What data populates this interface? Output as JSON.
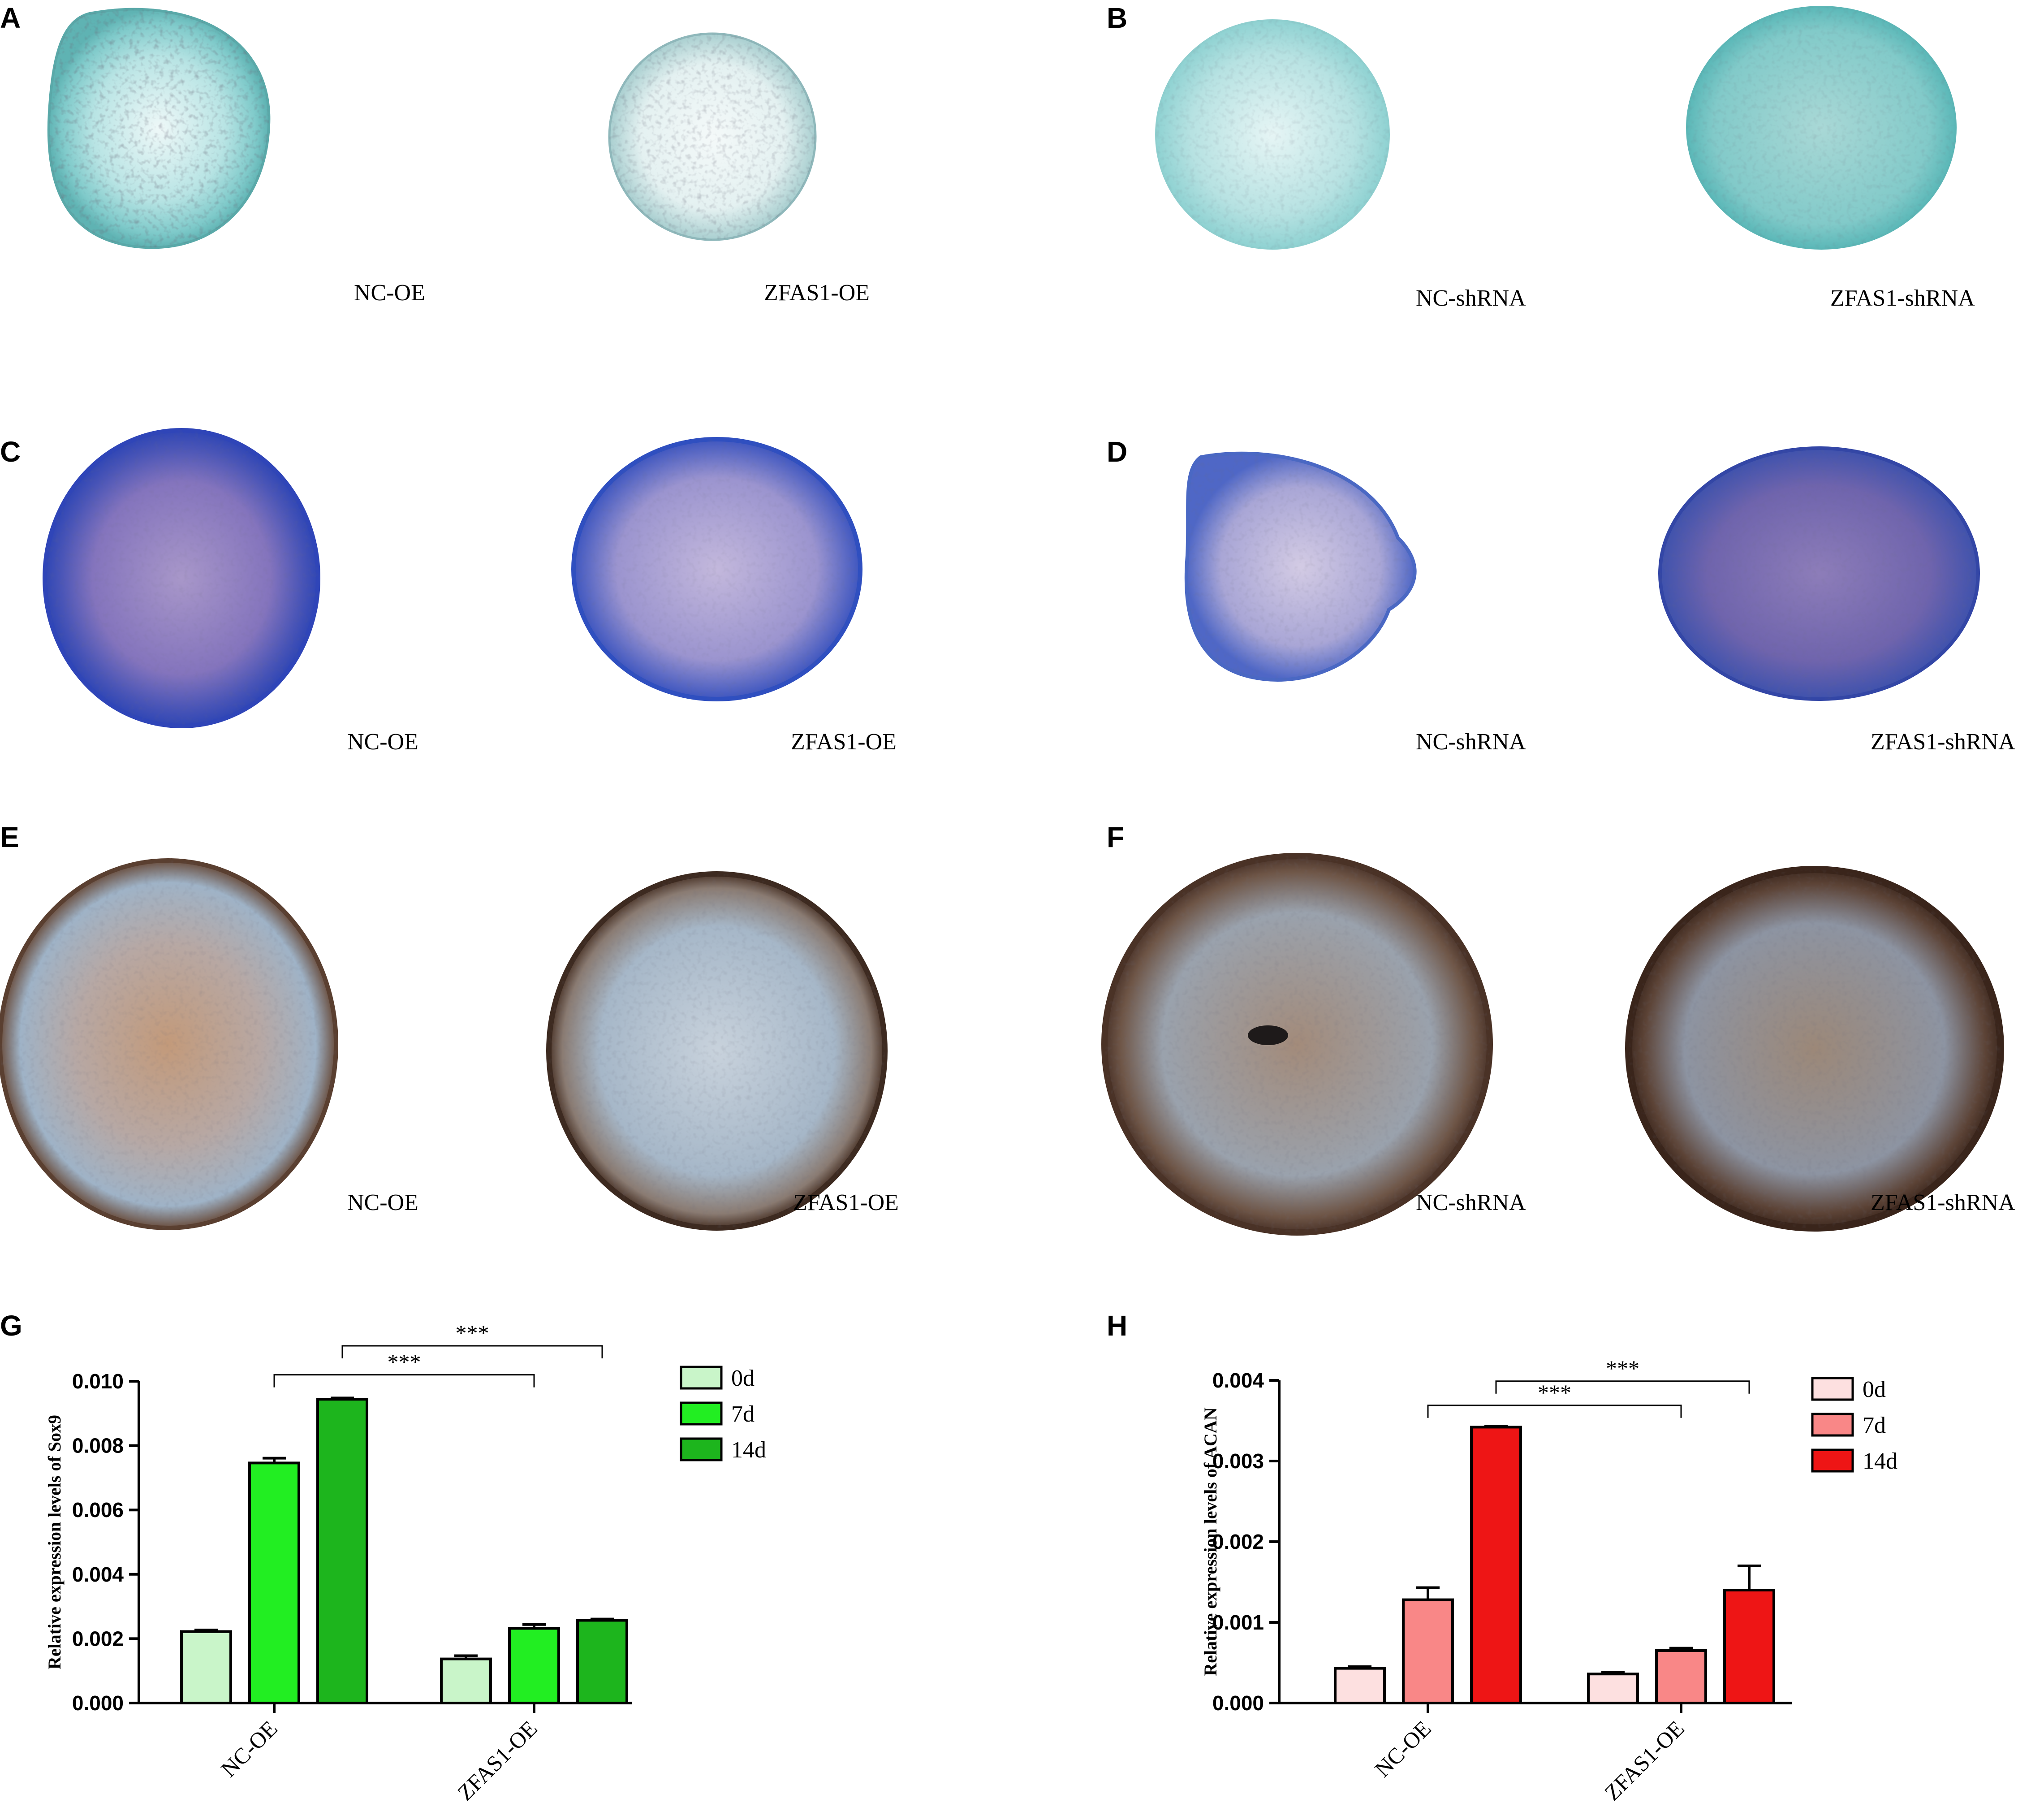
{
  "panels": {
    "A": {
      "letter": "A",
      "left_caption": "NC-OE",
      "right_caption": "ZFAS1-OE"
    },
    "B": {
      "letter": "B",
      "left_caption": "NC-shRNA",
      "right_caption": "ZFAS1-shRNA"
    },
    "C": {
      "letter": "C",
      "left_caption": "NC-OE",
      "right_caption": "ZFAS1-OE"
    },
    "D": {
      "letter": "D",
      "left_caption": "NC-shRNA",
      "right_caption": "ZFAS1-shRNA"
    },
    "E": {
      "letter": "E",
      "left_caption": "NC-OE",
      "right_caption": "ZFAS1-OE"
    },
    "F": {
      "letter": "F",
      "left_caption": "NC-shRNA",
      "right_caption": "ZFAS1-shRNA"
    },
    "G": {
      "letter": "G"
    },
    "H": {
      "letter": "H"
    }
  },
  "stain_colors": {
    "A": "#8ecfcf",
    "B": "#7fd0d0",
    "C": "#3d50b5",
    "D": "#5a6fc0",
    "E": "#b79a86",
    "F": "#8b6e5e"
  },
  "chart_data": [
    {
      "type": "bar",
      "panel": "G",
      "ylabel": "Relative expression levels of Sox9",
      "categories": [
        "NC-OE",
        "ZFAS1-OE"
      ],
      "ylim": [
        0,
        0.01
      ],
      "yticks": [
        0.0,
        0.002,
        0.004,
        0.006,
        0.008,
        0.01
      ],
      "ytick_labels": [
        "0.000",
        "0.002",
        "0.004",
        "0.006",
        "0.008",
        "0.010"
      ],
      "series": [
        {
          "name": "0d",
          "color": "#c9f5c9",
          "values": [
            0.00222,
            0.00137
          ],
          "errors": [
            5e-05,
            0.0001
          ]
        },
        {
          "name": "7d",
          "color": "#22ee22",
          "values": [
            0.00746,
            0.00232
          ],
          "errors": [
            0.00015,
            0.00012
          ]
        },
        {
          "name": "14d",
          "color": "#1db51d",
          "values": [
            0.00944,
            0.00257
          ],
          "errors": [
            4e-05,
            4e-05
          ]
        }
      ],
      "significance": [
        {
          "label": "***",
          "from_category": 0,
          "from_series": 1,
          "to_category": 1,
          "to_series": 1,
          "level": 0.0102
        },
        {
          "label": "***",
          "from_category": 0,
          "from_series": 2,
          "to_category": 1,
          "to_series": 2,
          "level": 0.0111
        }
      ],
      "legend_position": "right"
    },
    {
      "type": "bar",
      "panel": "H",
      "ylabel": "Relative expression levels of ACAN",
      "categories": [
        "NC-OE",
        "ZFAS1-OE"
      ],
      "ylim": [
        0,
        0.004
      ],
      "yticks": [
        0.0,
        0.001,
        0.002,
        0.003,
        0.004
      ],
      "ytick_labels": [
        "0.000",
        "0.001",
        "0.002",
        "0.003",
        "0.004"
      ],
      "series": [
        {
          "name": "0d",
          "color": "#fde0e0",
          "values": [
            0.00043,
            0.00036
          ],
          "errors": [
            2e-05,
            2e-05
          ]
        },
        {
          "name": "7d",
          "color": "#f98787",
          "values": [
            0.00128,
            0.00065
          ],
          "errors": [
            0.00015,
            3e-05
          ]
        },
        {
          "name": "14d",
          "color": "#ee1515",
          "values": [
            0.00342,
            0.0014
          ],
          "errors": [
            1e-05,
            0.0003
          ]
        }
      ],
      "significance": [
        {
          "label": "***",
          "from_category": 0,
          "from_series": 1,
          "to_category": 1,
          "to_series": 1,
          "level": 0.00369
        },
        {
          "label": "***",
          "from_category": 0,
          "from_series": 2,
          "to_category": 1,
          "to_series": 2,
          "level": 0.00399
        }
      ],
      "legend_position": "right"
    }
  ]
}
